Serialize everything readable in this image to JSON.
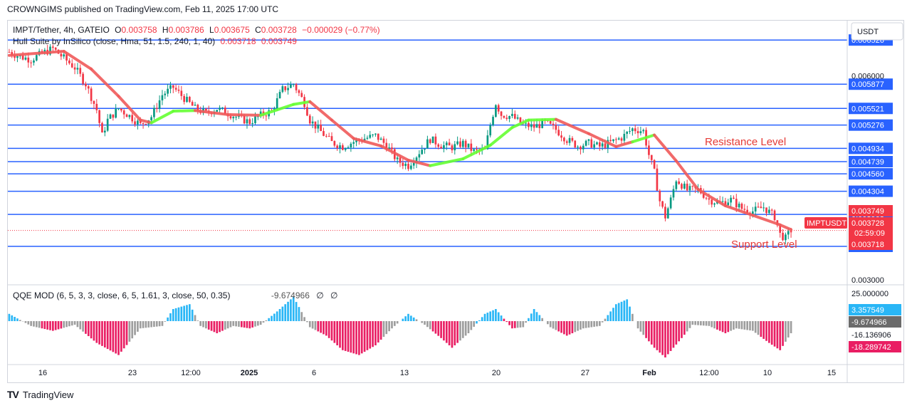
{
  "header": {
    "published": "CROWNGIMS published on TradingView.com, Feb 11, 2025 17:00 UTC"
  },
  "legend": {
    "symbol": "IMPT/Tether, 4h, GATEIO",
    "o_label": "O",
    "o_value": "0.003758",
    "h_label": "H",
    "h_value": "0.003786",
    "l_label": "L",
    "l_value": "0.003675",
    "c_label": "C",
    "c_value": "0.003728",
    "change": "−0.000029 (−0.77%)",
    "indicator": "Hull Suite by InSilico (close, Hma, 51, 1.5, 240, 1, 40)",
    "indicator_v1": "0.003718",
    "indicator_v2": "0.003749"
  },
  "qqe_legend": {
    "label": "QQE MOD (6, 5, 3, 3, close, 6, 5, 1.61, 3, close, 50, 0.35)",
    "value": "-9.674966",
    "empty1": "∅",
    "empty2": "∅"
  },
  "annotations": {
    "resistance": "Resistance Level",
    "support": "Support Level"
  },
  "footer": {
    "logo": "TV",
    "brand": "TradingView"
  },
  "colors": {
    "level_line": "#2962ff",
    "bull": "#089981",
    "bear": "#f23645",
    "hull_up": "#66ff33",
    "hull_down": "#f05a5a",
    "qqe_blue": "#29b6f6",
    "qqe_pink": "#e91e63",
    "qqe_gray": "#9e9e9e",
    "label_text": "#e53935"
  },
  "chart_data": {
    "type": "candlestick",
    "symbol": "IMPTUSDT",
    "currency": "USDT",
    "x_ticks": [
      "16",
      "23",
      "12:00",
      "2025",
      "6",
      "13",
      "20",
      "27",
      "Feb",
      "12:00",
      "10",
      "15"
    ],
    "y_ticks": [
      "0.006000",
      "0.003000"
    ],
    "ylim": [
      0.00295,
      0.0068
    ],
    "horizontal_levels": [
      0.006526,
      0.005877,
      0.005521,
      0.005276,
      0.004934,
      0.004739,
      0.00456,
      0.004304,
      0.003963,
      0.003494
    ],
    "level_labels": [
      "0.006526",
      "0.005877",
      "0.005521",
      "0.005276",
      "0.004934",
      "0.004739",
      "0.004560",
      "0.004304",
      "0.003963",
      "0.003494"
    ],
    "price_tags": [
      {
        "text": "0.003749",
        "value": 0.003749
      },
      {
        "text": "0.003728",
        "value": 0.003728,
        "sub": "02:59:09"
      },
      {
        "text": "0.003718",
        "value": 0.003718
      }
    ],
    "symbol_tag": "IMPTUSDT",
    "close_path": [
      [
        0,
        0.00635
      ],
      [
        4,
        0.00628
      ],
      [
        8,
        0.00624
      ],
      [
        12,
        0.00633
      ],
      [
        16,
        0.0064
      ],
      [
        20,
        0.00626
      ],
      [
        24,
        0.00612
      ],
      [
        28,
        0.00588
      ],
      [
        32,
        0.0055
      ],
      [
        34,
        0.00512
      ],
      [
        36,
        0.00535
      ],
      [
        40,
        0.00552
      ],
      [
        44,
        0.00541
      ],
      [
        48,
        0.00528
      ],
      [
        52,
        0.0054
      ],
      [
        56,
        0.00572
      ],
      [
        60,
        0.00583
      ],
      [
        64,
        0.00567
      ],
      [
        68,
        0.00552
      ],
      [
        72,
        0.00545
      ],
      [
        76,
        0.00552
      ],
      [
        80,
        0.00545
      ],
      [
        84,
        0.00538
      ],
      [
        88,
        0.00532
      ],
      [
        92,
        0.00542
      ],
      [
        96,
        0.00548
      ],
      [
        100,
        0.0058
      ],
      [
        104,
        0.00588
      ],
      [
        108,
        0.0056
      ],
      [
        110,
        0.00535
      ],
      [
        114,
        0.00518
      ],
      [
        118,
        0.00502
      ],
      [
        122,
        0.00496
      ],
      [
        126,
        0.00503
      ],
      [
        130,
        0.00508
      ],
      [
        134,
        0.00512
      ],
      [
        138,
        0.00498
      ],
      [
        142,
        0.00475
      ],
      [
        146,
        0.00468
      ],
      [
        150,
        0.00488
      ],
      [
        154,
        0.00507
      ],
      [
        158,
        0.00498
      ],
      [
        162,
        0.00495
      ],
      [
        166,
        0.00501
      ],
      [
        170,
        0.00489
      ],
      [
        174,
        0.0049
      ],
      [
        176,
        0.00528
      ],
      [
        178,
        0.0056
      ],
      [
        180,
        0.00543
      ],
      [
        184,
        0.0054
      ],
      [
        188,
        0.00528
      ],
      [
        192,
        0.00525
      ],
      [
        196,
        0.00531
      ],
      [
        200,
        0.00521
      ],
      [
        204,
        0.00506
      ],
      [
        208,
        0.00497
      ],
      [
        212,
        0.00501
      ],
      [
        216,
        0.00496
      ],
      [
        220,
        0.00502
      ],
      [
        224,
        0.00509
      ],
      [
        228,
        0.00522
      ],
      [
        232,
        0.00519
      ],
      [
        234,
        0.00484
      ],
      [
        236,
        0.00458
      ],
      [
        238,
        0.00416
      ],
      [
        240,
        0.00393
      ],
      [
        242,
        0.00418
      ],
      [
        244,
        0.00448
      ],
      [
        248,
        0.00432
      ],
      [
        252,
        0.00433
      ],
      [
        256,
        0.00418
      ],
      [
        260,
        0.00413
      ],
      [
        264,
        0.00418
      ],
      [
        268,
        0.00405
      ],
      [
        272,
        0.00401
      ],
      [
        276,
        0.00407
      ],
      [
        280,
        0.00393
      ],
      [
        282,
        0.00367
      ],
      [
        284,
        0.00361
      ],
      [
        286,
        0.00373
      ]
    ],
    "hull_path": [
      [
        0,
        0.0063,
        "d"
      ],
      [
        20,
        0.00636,
        "d"
      ],
      [
        30,
        0.0061,
        "d"
      ],
      [
        40,
        0.0057,
        "d"
      ],
      [
        48,
        0.00535,
        "d"
      ],
      [
        52,
        0.00531,
        "u"
      ],
      [
        60,
        0.00548,
        "u"
      ],
      [
        68,
        0.00549,
        "d"
      ],
      [
        80,
        0.00543,
        "d"
      ],
      [
        92,
        0.00542,
        "u"
      ],
      [
        104,
        0.00558,
        "u"
      ],
      [
        110,
        0.00562,
        "d"
      ],
      [
        118,
        0.00535,
        "d"
      ],
      [
        126,
        0.00508,
        "d"
      ],
      [
        136,
        0.00497,
        "d"
      ],
      [
        146,
        0.00476,
        "d"
      ],
      [
        154,
        0.00468,
        "u"
      ],
      [
        166,
        0.00478,
        "u"
      ],
      [
        176,
        0.00498,
        "u"
      ],
      [
        184,
        0.00524,
        "u"
      ],
      [
        190,
        0.00535,
        "u"
      ],
      [
        200,
        0.00536,
        "d"
      ],
      [
        212,
        0.00515,
        "d"
      ],
      [
        222,
        0.00496,
        "d"
      ],
      [
        228,
        0.00503,
        "u"
      ],
      [
        236,
        0.00513,
        "d"
      ],
      [
        244,
        0.00475,
        "d"
      ],
      [
        252,
        0.00433,
        "d"
      ],
      [
        262,
        0.00409,
        "d"
      ],
      [
        272,
        0.00395,
        "d"
      ],
      [
        282,
        0.00381,
        "d"
      ],
      [
        286,
        0.00374,
        "d"
      ]
    ],
    "candle_count": 287,
    "qqe": {
      "ylabels": [
        "25.000000",
        "3.357549",
        "-9.674966",
        "-16.136906",
        "-18.289742"
      ],
      "ylim": [
        -24,
        22
      ],
      "histogram_path": [
        [
          0,
          6,
          "b"
        ],
        [
          8,
          -4,
          "g"
        ],
        [
          16,
          -8,
          "p"
        ],
        [
          24,
          -3,
          "g"
        ],
        [
          32,
          -18,
          "p"
        ],
        [
          40,
          -28,
          "p"
        ],
        [
          48,
          -6,
          "g"
        ],
        [
          56,
          -4,
          "g"
        ],
        [
          60,
          10,
          "b"
        ],
        [
          66,
          14,
          "b"
        ],
        [
          70,
          -4,
          "g"
        ],
        [
          76,
          -10,
          "p"
        ],
        [
          82,
          -4,
          "g"
        ],
        [
          88,
          -6,
          "p"
        ],
        [
          92,
          -3,
          "g"
        ],
        [
          98,
          8,
          "b"
        ],
        [
          104,
          20,
          "b"
        ],
        [
          110,
          -5,
          "g"
        ],
        [
          116,
          -12,
          "p"
        ],
        [
          122,
          -24,
          "p"
        ],
        [
          128,
          -28,
          "p"
        ],
        [
          134,
          -20,
          "p"
        ],
        [
          140,
          -6,
          "g"
        ],
        [
          146,
          6,
          "b"
        ],
        [
          152,
          -3,
          "g"
        ],
        [
          158,
          -14,
          "p"
        ],
        [
          162,
          -22,
          "p"
        ],
        [
          168,
          -10,
          "g"
        ],
        [
          174,
          6,
          "b"
        ],
        [
          178,
          10,
          "b"
        ],
        [
          184,
          -6,
          "p"
        ],
        [
          188,
          -5,
          "g"
        ],
        [
          192,
          10,
          "b"
        ],
        [
          198,
          -5,
          "g"
        ],
        [
          204,
          -12,
          "p"
        ],
        [
          210,
          -6,
          "g"
        ],
        [
          216,
          -4,
          "g"
        ],
        [
          222,
          14,
          "b"
        ],
        [
          226,
          18,
          "b"
        ],
        [
          230,
          -6,
          "g"
        ],
        [
          236,
          -22,
          "p"
        ],
        [
          240,
          -30,
          "p"
        ],
        [
          246,
          -14,
          "p"
        ],
        [
          250,
          -3,
          "g"
        ],
        [
          256,
          -4,
          "g"
        ],
        [
          262,
          -10,
          "p"
        ],
        [
          266,
          -6,
          "g"
        ],
        [
          272,
          -8,
          "g"
        ],
        [
          278,
          -18,
          "p"
        ],
        [
          282,
          -24,
          "p"
        ],
        [
          286,
          -10,
          "g"
        ]
      ]
    }
  }
}
